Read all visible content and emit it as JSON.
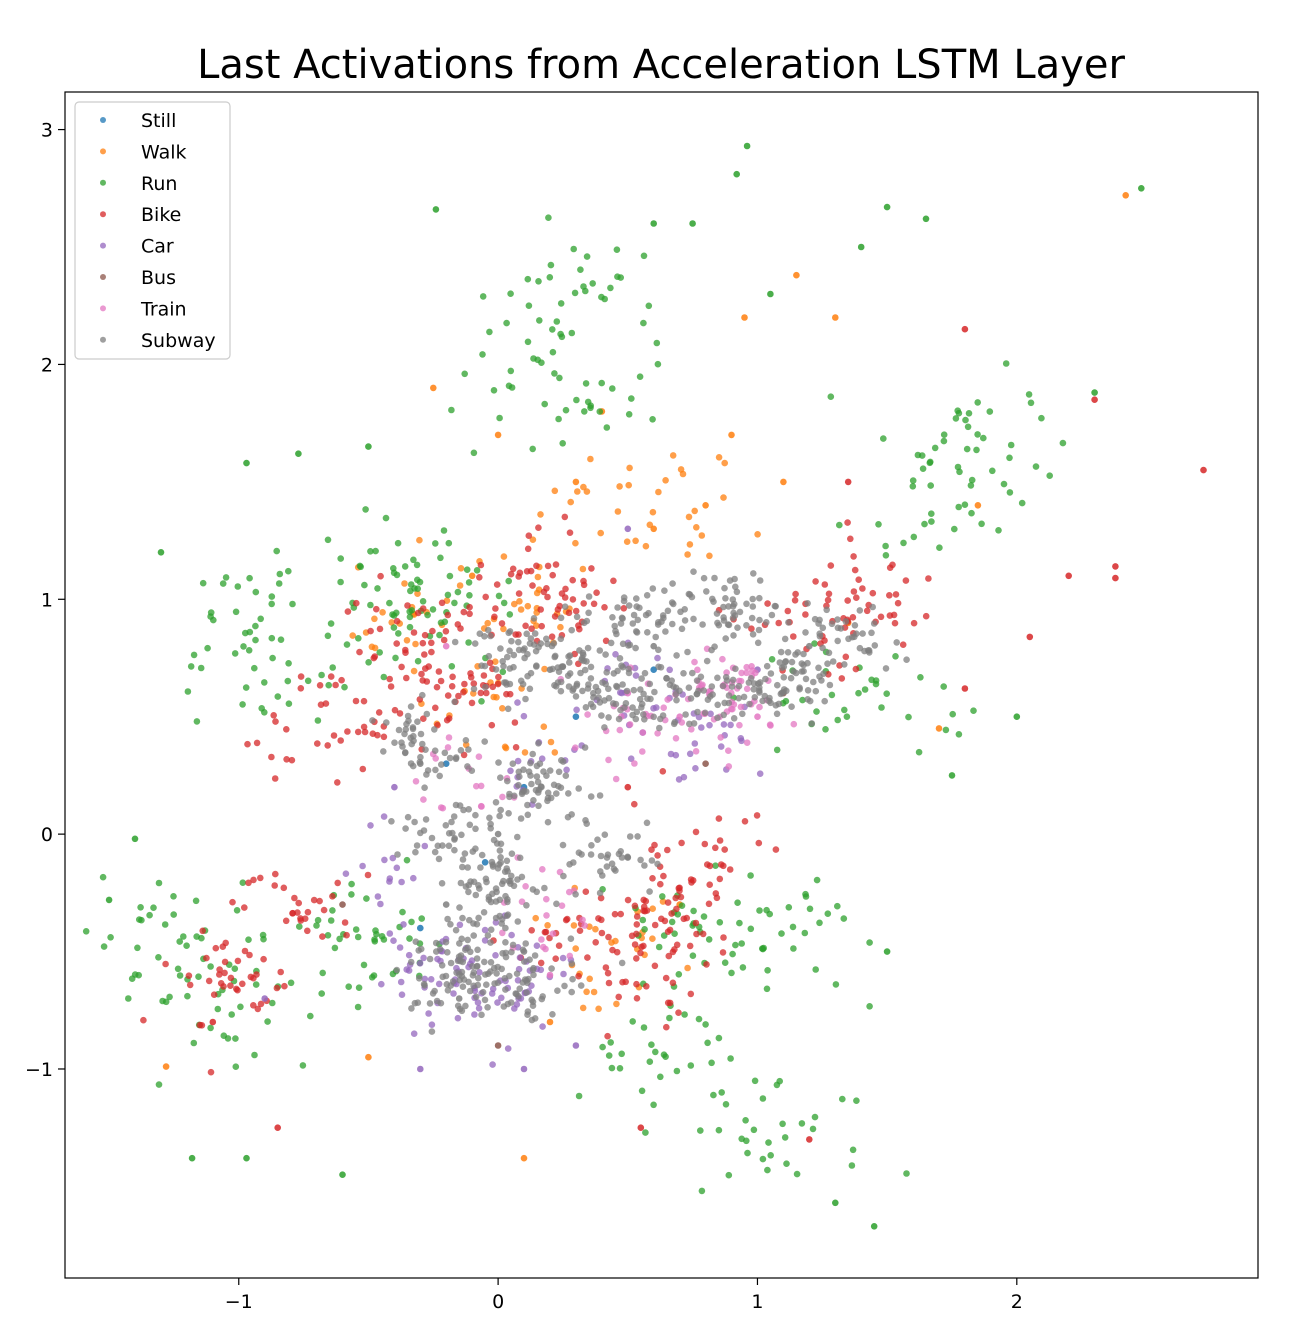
{
  "chart_data": {
    "type": "scatter",
    "title": "Last Activations from Acceleration LSTM Layer",
    "xlabel": "",
    "ylabel": "",
    "xlim": [
      -1.67,
      2.93
    ],
    "ylim": [
      -1.89,
      3.16
    ],
    "x_ticks": [
      -1,
      0,
      1,
      2
    ],
    "x_tick_labels": [
      "−1",
      "0",
      "1",
      "2"
    ],
    "y_ticks": [
      -1,
      0,
      1,
      2,
      3
    ],
    "y_tick_labels": [
      "−1",
      "0",
      "1",
      "2",
      "3"
    ],
    "grid": false,
    "legend_position": "top-left",
    "series": [
      {
        "name": "Still",
        "color": "#1f77b4",
        "points": [
          [
            -0.05,
            -0.12
          ],
          [
            0.1,
            0.2
          ],
          [
            0.3,
            0.5
          ],
          [
            -0.3,
            -0.4
          ],
          [
            0.6,
            0.7
          ],
          [
            -0.2,
            0.3
          ]
        ]
      },
      {
        "name": "Walk",
        "color": "#ff7f0e",
        "points": [
          [
            -0.1,
            1.1
          ],
          [
            0.3,
            1.5
          ],
          [
            0.6,
            1.3
          ],
          [
            0.9,
            1.7
          ],
          [
            1.1,
            1.5
          ],
          [
            0.0,
            1.7
          ],
          [
            -0.25,
            1.9
          ],
          [
            0.4,
            1.8
          ],
          [
            0.8,
            1.4
          ],
          [
            1.3,
            2.2
          ],
          [
            -1.28,
            -0.99
          ],
          [
            0.1,
            -1.38
          ],
          [
            -0.5,
            -0.95
          ],
          [
            0.2,
            -0.8
          ],
          [
            0.7,
            -0.3
          ],
          [
            1.35,
            0.9
          ],
          [
            2.42,
            2.72
          ],
          [
            1.85,
            1.4
          ],
          [
            1.7,
            0.45
          ],
          [
            0.95,
            2.2
          ],
          [
            1.15,
            2.38
          ]
        ]
      },
      {
        "name": "Run",
        "color": "#2ca02c",
        "points": [
          [
            0.96,
            2.93
          ],
          [
            0.92,
            2.81
          ],
          [
            -0.24,
            2.66
          ],
          [
            1.5,
            2.67
          ],
          [
            1.65,
            2.62
          ],
          [
            2.48,
            2.75
          ],
          [
            2.3,
            1.88
          ],
          [
            -1.3,
            1.2
          ],
          [
            -0.97,
            1.58
          ],
          [
            -1.5,
            -0.28
          ],
          [
            -1.4,
            -0.02
          ],
          [
            1.45,
            -1.67
          ],
          [
            1.3,
            -1.57
          ],
          [
            -1.18,
            -1.38
          ],
          [
            -0.97,
            -1.38
          ],
          [
            -0.6,
            -1.45
          ],
          [
            2.0,
            0.5
          ],
          [
            1.75,
            0.25
          ],
          [
            1.5,
            -0.5
          ],
          [
            0.6,
            2.6
          ],
          [
            0.75,
            2.6
          ],
          [
            -0.77,
            1.62
          ],
          [
            -0.5,
            1.65
          ],
          [
            1.05,
            2.3
          ],
          [
            1.4,
            2.5
          ]
        ]
      },
      {
        "name": "Bike",
        "color": "#d62728",
        "points": [
          [
            2.72,
            1.55
          ],
          [
            2.38,
            1.14
          ],
          [
            2.38,
            1.09
          ],
          [
            2.05,
            0.84
          ],
          [
            2.2,
            1.1
          ],
          [
            1.8,
            0.62
          ],
          [
            1.35,
            1.5
          ],
          [
            -1.1,
            -0.8
          ],
          [
            0.5,
            0.2
          ],
          [
            1.2,
            -1.3
          ],
          [
            -0.85,
            -1.25
          ],
          [
            0.55,
            -1.25
          ],
          [
            1.8,
            2.15
          ],
          [
            2.3,
            1.85
          ]
        ]
      },
      {
        "name": "Car",
        "color": "#9467bd",
        "points": [
          [
            -0.9,
            -0.7
          ],
          [
            -0.3,
            -1.0
          ],
          [
            0.1,
            -1.0
          ],
          [
            1.0,
            0.7
          ],
          [
            0.5,
            1.3
          ],
          [
            -0.4,
            0.2
          ],
          [
            0.3,
            -0.9
          ]
        ]
      },
      {
        "name": "Bus",
        "color": "#8c564b",
        "points": [
          [
            0.0,
            -0.9
          ],
          [
            -0.6,
            -0.3
          ],
          [
            0.8,
            0.3
          ],
          [
            1.1,
            0.6
          ]
        ]
      },
      {
        "name": "Train",
        "color": "#e377c2",
        "points": [
          [
            0.5,
            0.6
          ],
          [
            0.7,
            0.5
          ],
          [
            -0.2,
            0.8
          ],
          [
            0.2,
            -0.6
          ],
          [
            1.0,
            0.5
          ]
        ]
      },
      {
        "name": "Subway",
        "color": "#7f7f7f",
        "points": [
          [
            0.0,
            0.0
          ],
          [
            0.2,
            0.7
          ],
          [
            0.6,
            0.8
          ],
          [
            -0.3,
            0.3
          ],
          [
            1.2,
            0.8
          ],
          [
            -0.2,
            -0.3
          ],
          [
            0.1,
            -0.5
          ],
          [
            0.5,
            -0.1
          ],
          [
            -0.15,
            -0.7
          ]
        ]
      }
    ],
    "regions": [
      {
        "series": "Run",
        "points": [
          [
            -1.1,
            -0.75
          ],
          [
            -1.25,
            -0.4
          ],
          [
            -0.85,
            0.7
          ],
          [
            -0.95,
            0.95
          ],
          [
            -0.35,
            1.1
          ],
          [
            1.05,
            -0.4
          ],
          [
            0.7,
            -0.4
          ],
          [
            0.6,
            -0.9
          ],
          [
            1.1,
            -1.3
          ],
          [
            1.4,
            0.55
          ],
          [
            1.85,
            1.7
          ],
          [
            1.7,
            1.4
          ],
          [
            0.3,
            2.3
          ],
          [
            0.2,
            1.9
          ],
          [
            -0.55,
            -0.5
          ],
          [
            -0.3,
            0.95
          ]
        ],
        "spread": [
          0.17,
          0.13
        ],
        "count": 520
      },
      {
        "series": "Bike",
        "points": [
          [
            -1.0,
            -0.6
          ],
          [
            -0.8,
            -0.3
          ],
          [
            -0.65,
            0.45
          ],
          [
            -0.4,
            0.8
          ],
          [
            0.15,
            1.1
          ],
          [
            0.2,
            0.9
          ],
          [
            0.8,
            -0.1
          ],
          [
            0.65,
            -0.3
          ],
          [
            0.3,
            -0.45
          ],
          [
            0.6,
            -0.55
          ],
          [
            1.2,
            0.9
          ],
          [
            1.4,
            1.0
          ],
          [
            -0.15,
            0.6
          ]
        ],
        "spread": [
          0.13,
          0.11
        ],
        "count": 430
      },
      {
        "series": "Walk",
        "points": [
          [
            0.3,
            1.45
          ],
          [
            0.1,
            1.0
          ],
          [
            0.7,
            1.4
          ],
          [
            -0.3,
            0.95
          ],
          [
            0.4,
            -0.5
          ],
          [
            0.0,
            0.5
          ]
        ],
        "spread": [
          0.14,
          0.14
        ],
        "count": 130
      },
      {
        "series": "Car",
        "points": [
          [
            -0.3,
            -0.6
          ],
          [
            -0.1,
            -0.7
          ],
          [
            0.1,
            -0.6
          ],
          [
            -0.4,
            -0.15
          ],
          [
            0.15,
            0.3
          ],
          [
            0.5,
            0.6
          ],
          [
            0.8,
            0.4
          ]
        ],
        "spread": [
          0.1,
          0.12
        ],
        "count": 160
      },
      {
        "series": "Train",
        "points": [
          [
            0.5,
            0.5
          ],
          [
            0.85,
            0.55
          ],
          [
            0.2,
            -0.35
          ],
          [
            -0.1,
            0.2
          ],
          [
            0.9,
            0.6
          ]
        ],
        "spread": [
          0.1,
          0.1
        ],
        "count": 120
      },
      {
        "series": "Subway",
        "points": [
          [
            0.0,
            -0.2
          ],
          [
            -0.2,
            0.0
          ],
          [
            0.15,
            0.2
          ],
          [
            0.3,
            0.7
          ],
          [
            0.1,
            0.75
          ],
          [
            0.5,
            0.6
          ],
          [
            0.8,
            0.6
          ],
          [
            1.1,
            0.65
          ],
          [
            1.3,
            0.85
          ],
          [
            -0.15,
            -0.6
          ],
          [
            0.1,
            -0.65
          ],
          [
            0.45,
            -0.1
          ],
          [
            0.55,
            0.9
          ],
          [
            0.9,
            0.95
          ],
          [
            -0.3,
            0.4
          ],
          [
            -0.05,
            -0.4
          ]
        ],
        "spread": [
          0.1,
          0.08
        ],
        "count": 820
      }
    ]
  }
}
